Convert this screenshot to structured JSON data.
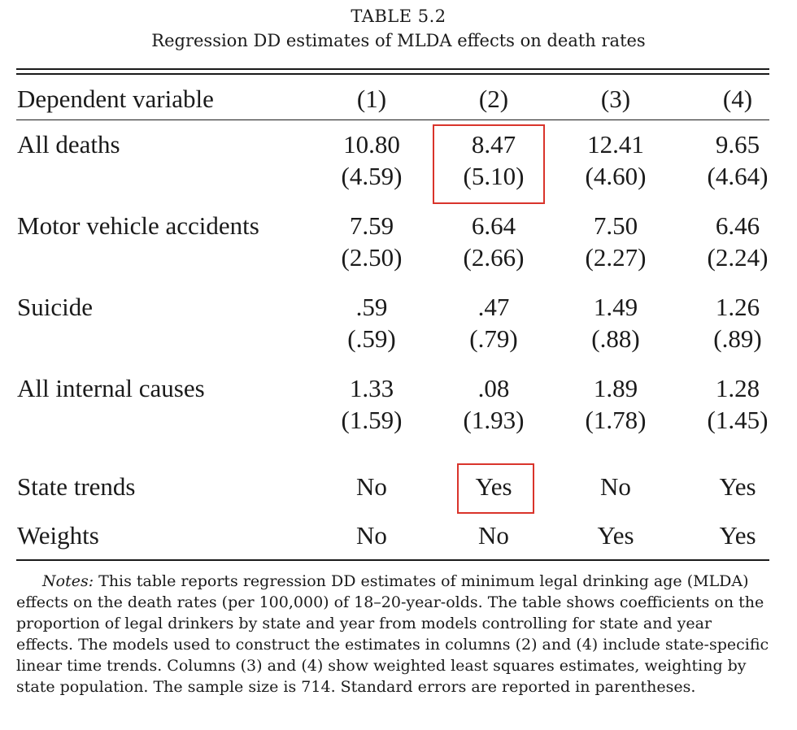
{
  "table": {
    "label": "TABLE 5.2",
    "caption": "Regression DD estimates of MLDA effects on death rates",
    "header": {
      "dependent_variable": "Dependent variable",
      "columns": [
        "(1)",
        "(2)",
        "(3)",
        "(4)"
      ]
    },
    "rows": [
      {
        "label": "All deaths",
        "estimates": [
          "10.80",
          "8.47",
          "12.41",
          "9.65"
        ],
        "std_errors": [
          "(4.59)",
          "(5.10)",
          "(4.60)",
          "(4.64)"
        ]
      },
      {
        "label": "Motor vehicle accidents",
        "estimates": [
          "7.59",
          "6.64",
          "7.50",
          "6.46"
        ],
        "std_errors": [
          "(2.50)",
          "(2.66)",
          "(2.27)",
          "(2.24)"
        ]
      },
      {
        "label": "Suicide",
        "estimates": [
          ".59",
          ".47",
          "1.49",
          "1.26"
        ],
        "std_errors": [
          "(.59)",
          "(.79)",
          "(.88)",
          "(.89)"
        ]
      },
      {
        "label": "All internal causes",
        "estimates": [
          "1.33",
          ".08",
          "1.89",
          "1.28"
        ],
        "std_errors": [
          "(1.59)",
          "(1.93)",
          "(1.78)",
          "(1.45)"
        ]
      }
    ],
    "controls": [
      {
        "label": "State trends",
        "values": [
          "No",
          "Yes",
          "No",
          "Yes"
        ]
      },
      {
        "label": "Weights",
        "values": [
          "No",
          "No",
          "Yes",
          "Yes"
        ]
      }
    ],
    "notes": {
      "lead": "Notes:",
      "text": " This table reports regression DD estimates of minimum legal drinking age (MLDA) effects on the death rates (per 100,000) of 18–20-year-olds. The table shows coefficients on the proportion of legal drinkers by state and year from models controlling for state and year effects. The models used to construct the estimates in columns (2) and (4) include state-specific linear time trends. Columns (3) and (4) show weighted least squares estimates, weighting by state population. The sample size is 714. Standard errors are reported in parentheses."
    }
  },
  "highlights": {
    "color": "#d9342b"
  }
}
